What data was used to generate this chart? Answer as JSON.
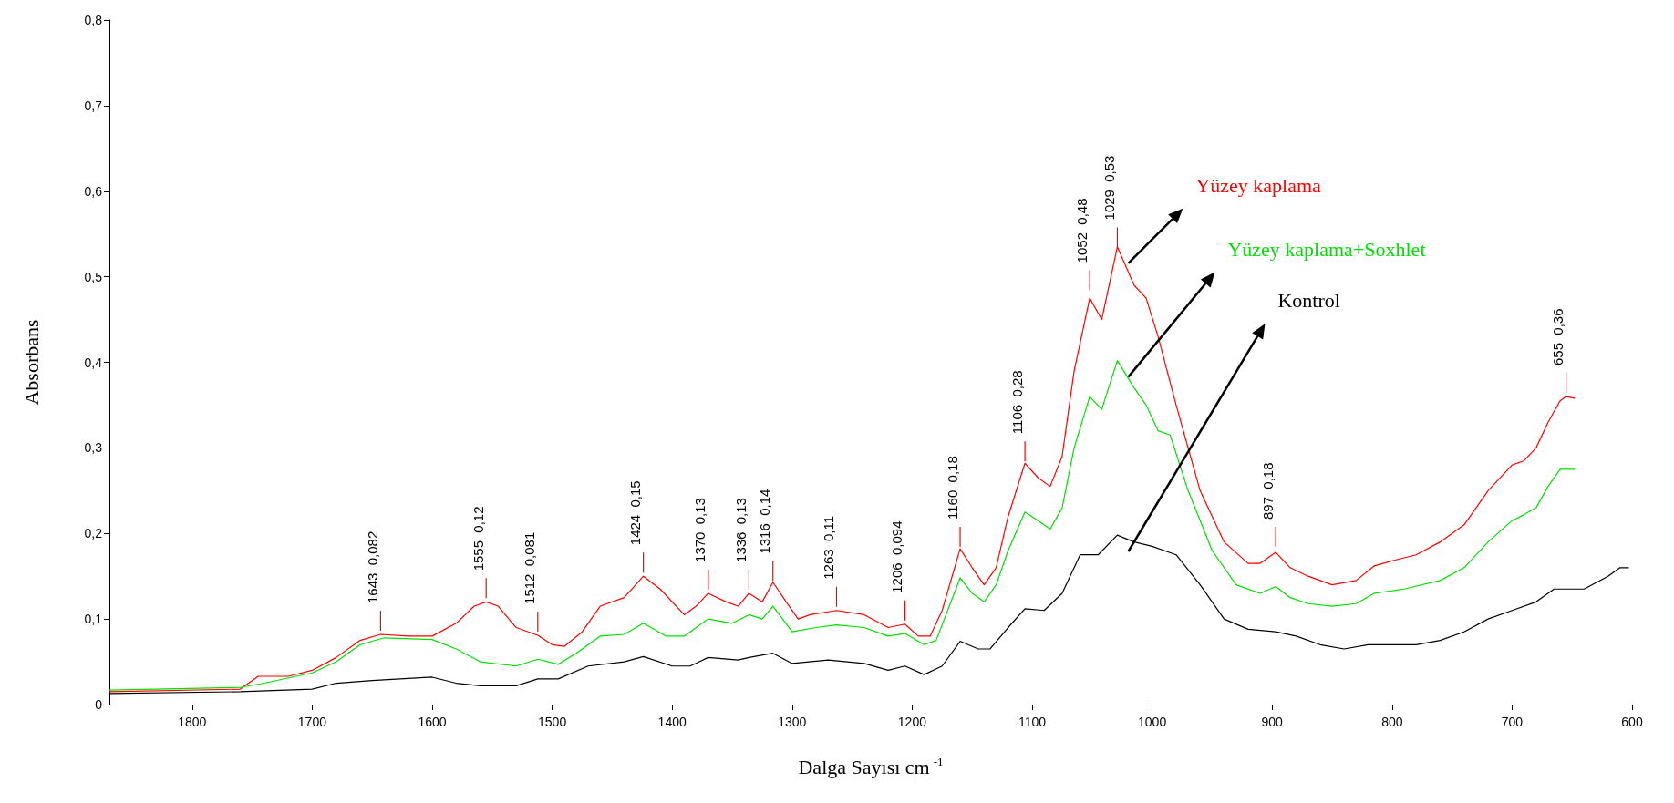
{
  "chart_data": {
    "type": "line",
    "xlabel": "Dalga Sayısı cm$^{-1}$",
    "ylabel": "Absorbans",
    "xlim": [
      1869,
      600
    ],
    "xticks": [
      1800,
      1700,
      1600,
      1500,
      1400,
      1300,
      1200,
      1100,
      1000,
      900,
      800,
      700,
      600
    ],
    "ylim": [
      0,
      0.8
    ],
    "yticks": [
      0,
      {
        "value": 0.1,
        "label": "0,1"
      },
      {
        "value": 0.2,
        "label": "0,2"
      },
      {
        "value": 0.3,
        "label": "0,3"
      },
      {
        "value": 0.4,
        "label": "0,4"
      },
      {
        "value": 0.5,
        "label": "0,5"
      },
      {
        "value": 0.6,
        "label": "0,6"
      },
      {
        "value": 0.7,
        "label": "0,7"
      },
      {
        "value": 0.8,
        "label": "0,8"
      }
    ],
    "grid": false,
    "legend": false,
    "marker": "none",
    "line_style": "solid",
    "series": [
      {
        "name": "Yüzey kaplama",
        "color": "#ff0000",
        "x": [
          1869,
          1760,
          1745,
          1720,
          1700,
          1680,
          1660,
          1643,
          1620,
          1600,
          1580,
          1565,
          1555,
          1545,
          1530,
          1512,
          1500,
          1490,
          1475,
          1460,
          1440,
          1424,
          1410,
          1390,
          1380,
          1370,
          1355,
          1345,
          1336,
          1325,
          1316,
          1305,
          1295,
          1285,
          1263,
          1240,
          1220,
          1206,
          1195,
          1185,
          1175,
          1160,
          1150,
          1140,
          1130,
          1120,
          1106,
          1095,
          1085,
          1075,
          1065,
          1052,
          1042,
          1029,
          1015,
          1005,
          995,
          980,
          960,
          940,
          920,
          910,
          897,
          885,
          870,
          850,
          830,
          815,
          800,
          780,
          760,
          740,
          720,
          700,
          690,
          680,
          670,
          660,
          655,
          648
        ],
        "values": [
          0.015,
          0.018,
          0.033,
          0.033,
          0.04,
          0.055,
          0.075,
          0.082,
          0.08,
          0.08,
          0.095,
          0.115,
          0.12,
          0.115,
          0.09,
          0.081,
          0.07,
          0.068,
          0.085,
          0.115,
          0.125,
          0.15,
          0.135,
          0.105,
          0.115,
          0.13,
          0.12,
          0.115,
          0.13,
          0.12,
          0.143,
          0.12,
          0.1,
          0.105,
          0.11,
          0.105,
          0.09,
          0.094,
          0.08,
          0.08,
          0.11,
          0.182,
          0.16,
          0.14,
          0.16,
          0.22,
          0.282,
          0.265,
          0.255,
          0.29,
          0.39,
          0.475,
          0.45,
          0.535,
          0.49,
          0.475,
          0.43,
          0.35,
          0.25,
          0.19,
          0.165,
          0.165,
          0.178,
          0.16,
          0.15,
          0.14,
          0.145,
          0.162,
          0.168,
          0.175,
          0.19,
          0.21,
          0.25,
          0.28,
          0.285,
          0.3,
          0.33,
          0.355,
          0.36,
          0.358
        ]
      },
      {
        "name": "Yüzey kaplama+Soxhlet",
        "color": "#00e000",
        "x": [
          1869,
          1760,
          1740,
          1700,
          1680,
          1660,
          1640,
          1600,
          1580,
          1560,
          1530,
          1512,
          1495,
          1480,
          1460,
          1440,
          1424,
          1405,
          1390,
          1370,
          1350,
          1336,
          1325,
          1316,
          1300,
          1280,
          1263,
          1240,
          1220,
          1206,
          1190,
          1180,
          1160,
          1150,
          1140,
          1130,
          1120,
          1106,
          1095,
          1085,
          1075,
          1065,
          1052,
          1042,
          1029,
          1015,
          1005,
          995,
          985,
          970,
          950,
          930,
          910,
          897,
          885,
          870,
          850,
          830,
          815,
          790,
          760,
          740,
          720,
          700,
          690,
          680,
          670,
          660,
          648
        ],
        "values": [
          0.017,
          0.02,
          0.025,
          0.037,
          0.05,
          0.07,
          0.078,
          0.076,
          0.065,
          0.05,
          0.045,
          0.053,
          0.047,
          0.06,
          0.08,
          0.082,
          0.095,
          0.08,
          0.08,
          0.1,
          0.095,
          0.105,
          0.1,
          0.115,
          0.085,
          0.09,
          0.093,
          0.09,
          0.08,
          0.083,
          0.07,
          0.075,
          0.148,
          0.13,
          0.12,
          0.14,
          0.18,
          0.225,
          0.215,
          0.205,
          0.23,
          0.3,
          0.36,
          0.345,
          0.402,
          0.37,
          0.35,
          0.32,
          0.315,
          0.25,
          0.18,
          0.14,
          0.13,
          0.138,
          0.125,
          0.118,
          0.115,
          0.118,
          0.13,
          0.135,
          0.145,
          0.16,
          0.19,
          0.215,
          0.222,
          0.23,
          0.255,
          0.275,
          0.275
        ]
      },
      {
        "name": "Kontrol",
        "color": "#000000",
        "x": [
          1869,
          1760,
          1700,
          1680,
          1650,
          1600,
          1580,
          1560,
          1530,
          1512,
          1495,
          1470,
          1440,
          1424,
          1400,
          1385,
          1370,
          1345,
          1336,
          1316,
          1300,
          1270,
          1240,
          1220,
          1206,
          1190,
          1175,
          1160,
          1145,
          1135,
          1120,
          1106,
          1090,
          1075,
          1060,
          1045,
          1029,
          1015,
          1000,
          980,
          960,
          940,
          920,
          897,
          880,
          860,
          840,
          820,
          800,
          780,
          760,
          740,
          720,
          700,
          680,
          665,
          640,
          620,
          610,
          603
        ],
        "values": [
          0.013,
          0.015,
          0.018,
          0.025,
          0.028,
          0.032,
          0.025,
          0.022,
          0.022,
          0.03,
          0.03,
          0.045,
          0.05,
          0.056,
          0.045,
          0.045,
          0.055,
          0.052,
          0.055,
          0.06,
          0.048,
          0.052,
          0.048,
          0.04,
          0.045,
          0.035,
          0.045,
          0.074,
          0.065,
          0.065,
          0.09,
          0.112,
          0.11,
          0.13,
          0.175,
          0.175,
          0.198,
          0.19,
          0.185,
          0.175,
          0.14,
          0.1,
          0.088,
          0.085,
          0.08,
          0.07,
          0.065,
          0.07,
          0.07,
          0.07,
          0.075,
          0.085,
          0.1,
          0.11,
          0.12,
          0.135,
          0.135,
          0.15,
          0.16,
          0.16
        ]
      }
    ],
    "annotations": [
      {
        "text": "1643  0,082",
        "x": 1643,
        "y": 0.082
      },
      {
        "text": "1555  0,12",
        "x": 1555,
        "y": 0.12
      },
      {
        "text": "1512  0,081",
        "x": 1512,
        "y": 0.081
      },
      {
        "text": "1424  0,15",
        "x": 1424,
        "y": 0.15
      },
      {
        "text": "1370  0,13",
        "x": 1370,
        "y": 0.13
      },
      {
        "text": "1336  0,13",
        "x": 1336,
        "y": 0.13
      },
      {
        "text": "1316  0,14",
        "x": 1316,
        "y": 0.14
      },
      {
        "text": "1263  0,11",
        "x": 1263,
        "y": 0.11
      },
      {
        "text": "1206  0,094",
        "x": 1206,
        "y": 0.094
      },
      {
        "text": "1160  0,18",
        "x": 1160,
        "y": 0.18
      },
      {
        "text": "1106  0,28",
        "x": 1106,
        "y": 0.28
      },
      {
        "text": "1052  0,48",
        "x": 1052,
        "y": 0.48
      },
      {
        "text": "1029  0,53",
        "x": 1029,
        "y": 0.53
      },
      {
        "text": "897  0,18",
        "x": 897,
        "y": 0.18
      },
      {
        "text": "655  0,36",
        "x": 655,
        "y": 0.36
      }
    ]
  }
}
